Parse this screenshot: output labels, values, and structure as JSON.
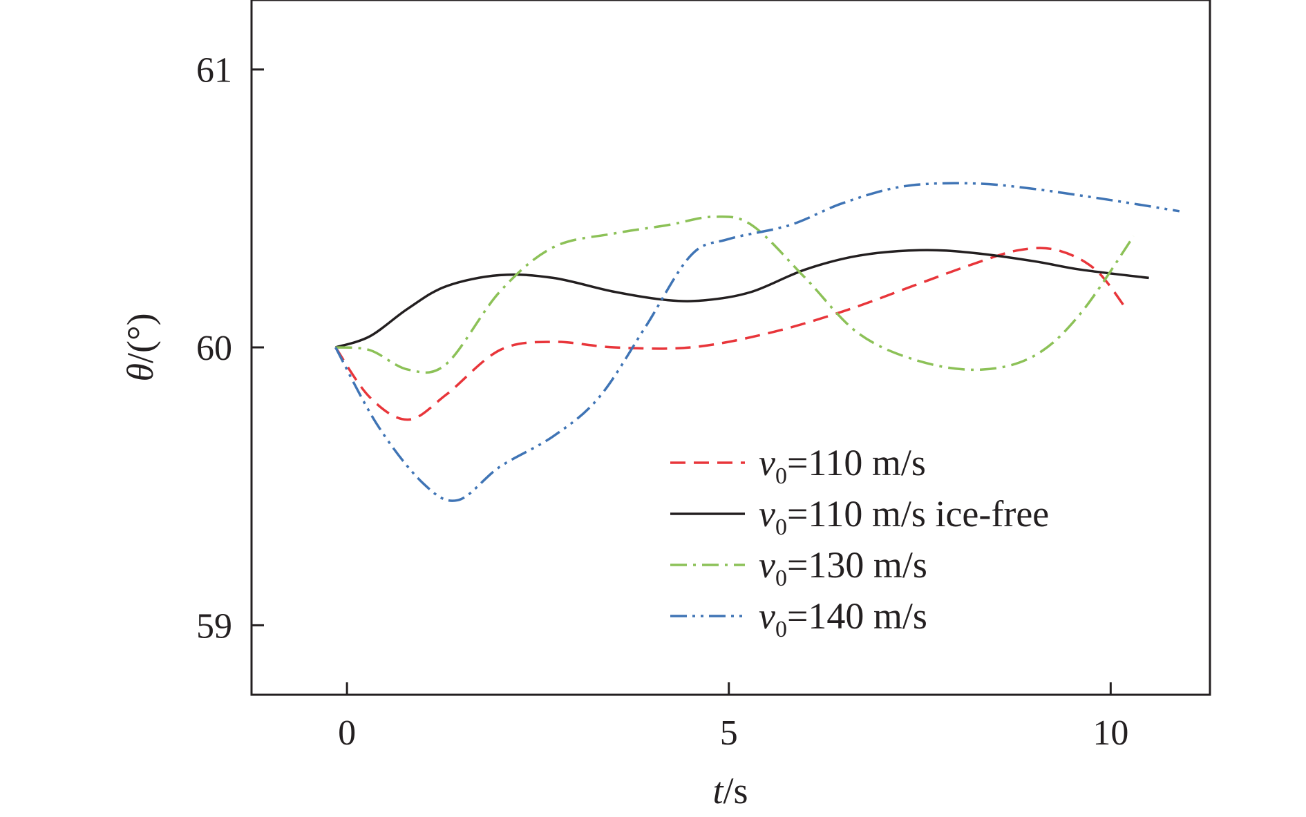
{
  "chart_data": {
    "type": "line",
    "xlabel_symbol": "t",
    "xlabel_unit": "/s",
    "ylabel_symbol": "θ",
    "ylabel_unit": "/(°)",
    "xlim": [
      -1.25,
      11.3
    ],
    "ylim": [
      58.75,
      61.25
    ],
    "x_ticks": [
      0,
      5,
      10
    ],
    "x_tick_labels": [
      "0",
      "5",
      "10"
    ],
    "y_ticks": [
      59,
      60,
      61
    ],
    "y_tick_labels": [
      "59",
      "60",
      "61"
    ],
    "grid": false,
    "legend_position": "bottom-right",
    "series": [
      {
        "name": "v0=110 m/s",
        "legend_symbol": "v",
        "legend_subscript": "0",
        "legend_rest": "=110 m/s",
        "color": "#e8353a",
        "dash": "dashed",
        "x": [
          -0.15,
          0.3,
          0.8,
          1.3,
          2.0,
          2.7,
          3.5,
          4.5,
          5.5,
          6.5,
          7.5,
          8.2,
          8.8,
          9.3,
          9.8,
          10.2
        ],
        "y": [
          60.0,
          59.82,
          59.74,
          59.83,
          59.99,
          60.02,
          60.0,
          60.0,
          60.05,
          60.13,
          60.23,
          60.3,
          60.35,
          60.35,
          60.28,
          60.14
        ]
      },
      {
        "name": "v0=110 m/s ice-free",
        "legend_symbol": "v",
        "legend_subscript": "0",
        "legend_rest": "=110 m/s ice-free",
        "color": "#231f20",
        "dash": "solid",
        "x": [
          -0.15,
          0.3,
          0.8,
          1.3,
          2.0,
          2.7,
          3.5,
          4.2,
          4.7,
          5.3,
          6.0,
          6.7,
          7.5,
          8.2,
          9.0,
          9.6,
          10.5
        ],
        "y": [
          60.0,
          60.04,
          60.14,
          60.22,
          60.26,
          60.25,
          60.2,
          60.17,
          60.17,
          60.2,
          60.28,
          60.33,
          60.35,
          60.34,
          60.31,
          60.28,
          60.25
        ]
      },
      {
        "name": "v0=130 m/s",
        "legend_symbol": "v",
        "legend_subscript": "0",
        "legend_rest": "=130 m/s",
        "color": "#8cc157",
        "dash": "dashdot",
        "x": [
          -0.15,
          0.3,
          0.8,
          1.3,
          2.0,
          2.7,
          3.5,
          4.2,
          4.8,
          5.3,
          6.0,
          6.7,
          7.5,
          8.3,
          9.0,
          9.6,
          10.3
        ],
        "y": [
          60.0,
          59.99,
          59.92,
          59.94,
          60.2,
          60.36,
          60.41,
          60.44,
          60.47,
          60.44,
          60.25,
          60.05,
          59.95,
          59.92,
          59.97,
          60.12,
          60.4
        ]
      },
      {
        "name": "v0=140 m/s",
        "legend_symbol": "v",
        "legend_subscript": "0",
        "legend_rest": "=140 m/s",
        "color": "#3f74b5",
        "dash": "dashdotdot",
        "x": [
          -0.15,
          0.4,
          1.0,
          1.45,
          2.0,
          2.7,
          3.3,
          3.9,
          4.5,
          5.0,
          5.8,
          6.5,
          7.3,
          8.2,
          9.0,
          10.0,
          10.9
        ],
        "y": [
          60.0,
          59.72,
          59.51,
          59.45,
          59.57,
          59.68,
          59.82,
          60.07,
          60.33,
          60.39,
          60.44,
          60.52,
          60.58,
          60.59,
          60.57,
          60.53,
          60.49
        ]
      }
    ]
  }
}
